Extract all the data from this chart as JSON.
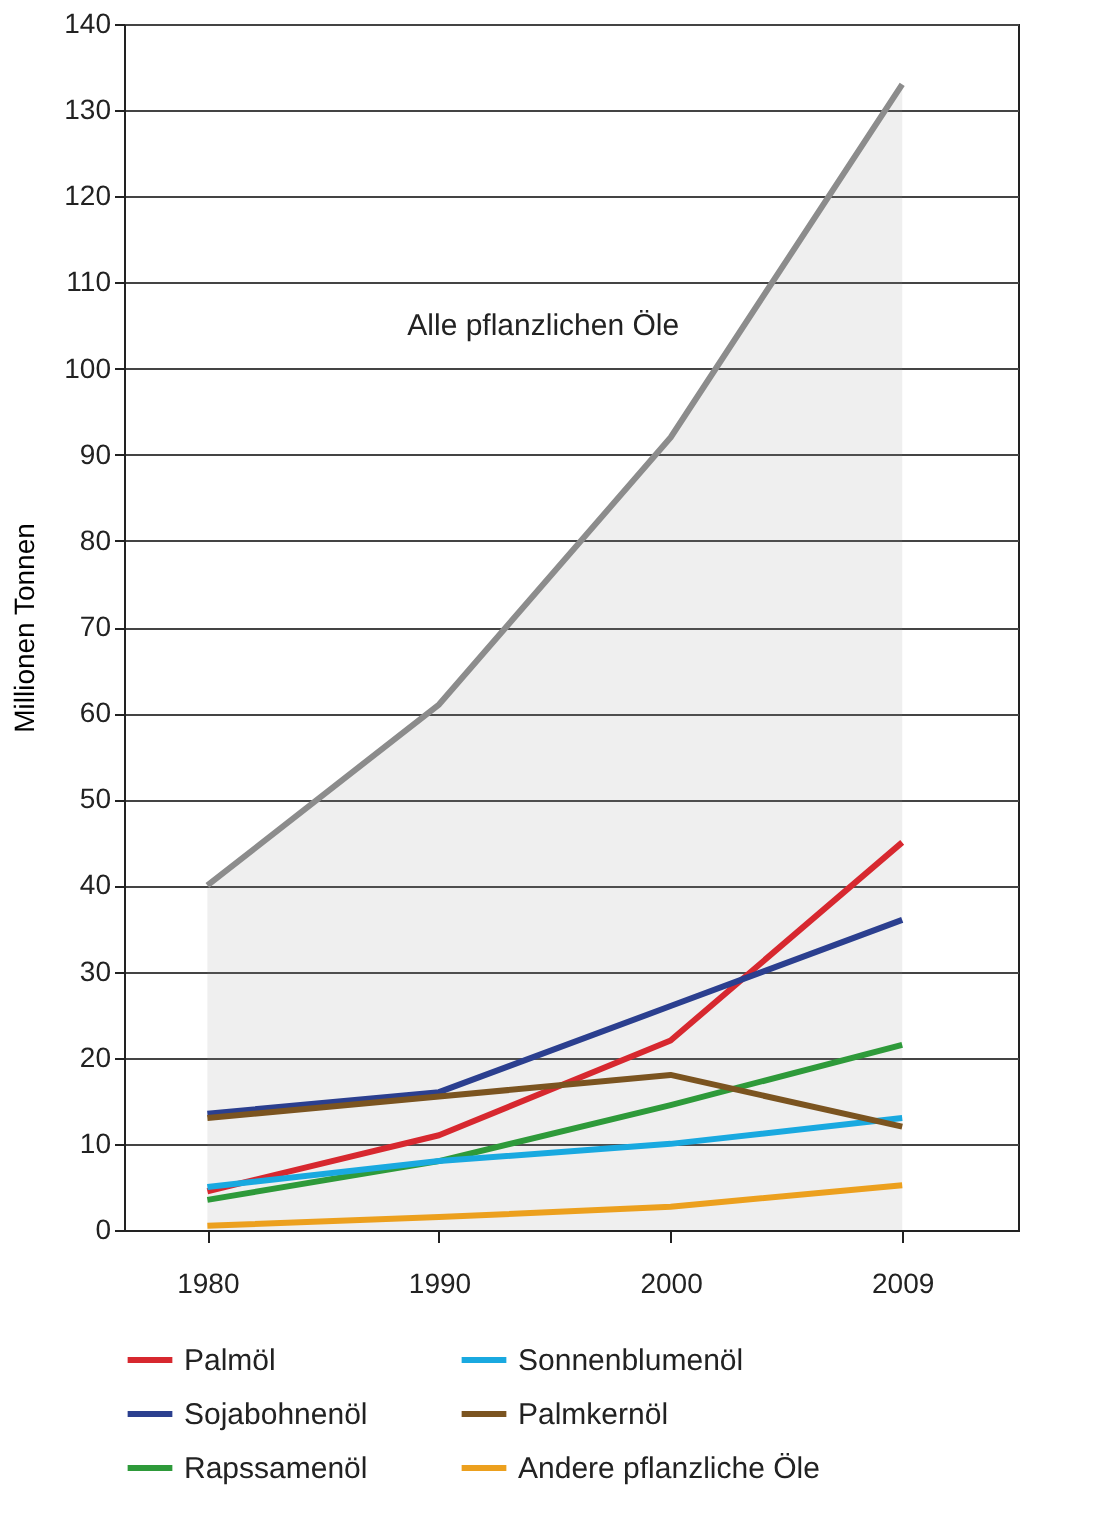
{
  "chart_data": {
    "type": "line",
    "ylabel": "Millionen Tonnen",
    "categories": [
      "1980",
      "1990",
      "2000",
      "2009"
    ],
    "ylim": [
      0,
      140
    ],
    "yticks": [
      0,
      10,
      20,
      30,
      40,
      50,
      60,
      70,
      80,
      90,
      100,
      110,
      120,
      130,
      140
    ],
    "grid": "y",
    "legend": "bottom",
    "series": [
      {
        "name": "Alle pflanzlichen Öle",
        "type": "area",
        "color": "#8c8c8c",
        "values": [
          40,
          61,
          92,
          133
        ]
      },
      {
        "name": "Palmöl",
        "color": "#d7282f",
        "values": [
          4.5,
          11,
          22,
          45
        ]
      },
      {
        "name": "Sojabohnenöl",
        "color": "#2b3f8f",
        "values": [
          13.5,
          16,
          26,
          36
        ]
      },
      {
        "name": "Rapssamenöl",
        "color": "#2e9a3a",
        "values": [
          3.5,
          8,
          14.5,
          21.5
        ]
      },
      {
        "name": "Sonnenblumenöl",
        "color": "#19a9e0",
        "values": [
          5,
          8,
          10,
          13
        ]
      },
      {
        "name": "Palmkernöl",
        "color": "#7b5420",
        "values": [
          13,
          15.5,
          18,
          12
        ]
      },
      {
        "name": "Andere pflanzliche Öle",
        "color": "#eca01e",
        "values": [
          0.5,
          1.5,
          2.7,
          5.2
        ]
      }
    ]
  }
}
